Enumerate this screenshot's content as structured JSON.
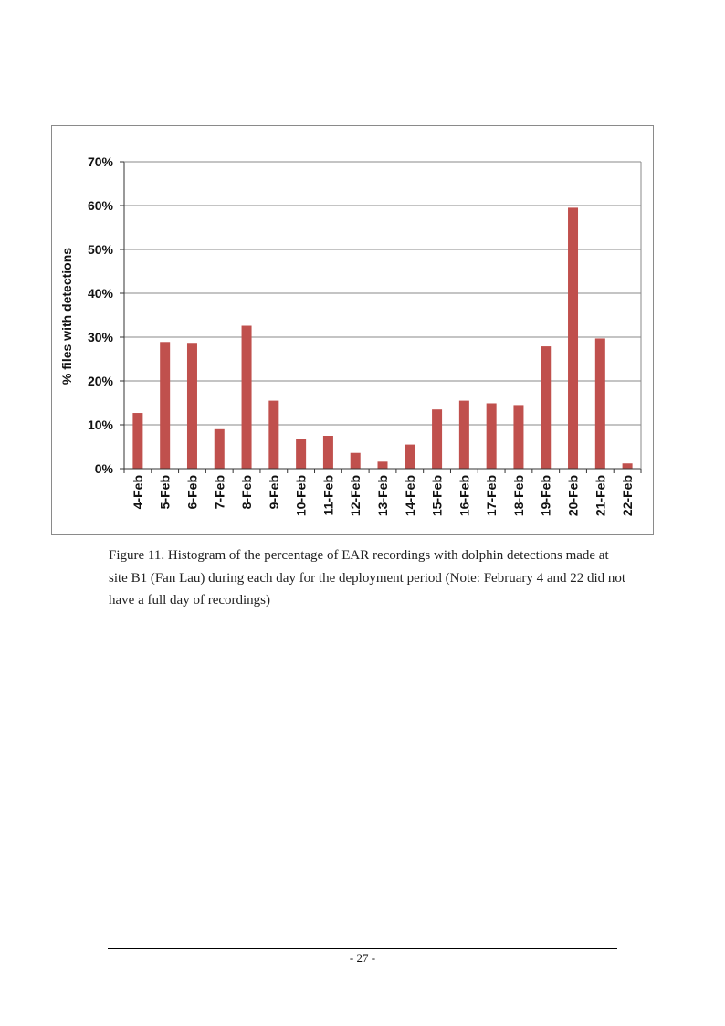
{
  "chart_data": {
    "type": "bar",
    "title": "",
    "xlabel": "",
    "ylabel": "% files with detections",
    "categories": [
      "4-Feb",
      "5-Feb",
      "6-Feb",
      "7-Feb",
      "8-Feb",
      "9-Feb",
      "10-Feb",
      "11-Feb",
      "12-Feb",
      "13-Feb",
      "14-Feb",
      "15-Feb",
      "16-Feb",
      "17-Feb",
      "18-Feb",
      "19-Feb",
      "20-Feb",
      "21-Feb",
      "22-Feb"
    ],
    "values": [
      12.7,
      28.9,
      28.7,
      9.0,
      32.6,
      15.5,
      6.7,
      7.5,
      3.6,
      1.6,
      5.5,
      13.5,
      15.5,
      14.9,
      14.5,
      27.9,
      59.5,
      29.7,
      1.2
    ],
    "ylim": [
      0,
      70
    ],
    "yticks": [
      0,
      10,
      20,
      30,
      40,
      50,
      60,
      70
    ],
    "ytick_labels": [
      "0%",
      "10%",
      "20%",
      "30%",
      "40%",
      "50%",
      "60%",
      "70%"
    ],
    "grid": true,
    "legend": "none",
    "bar_color": "#c0504d",
    "grid_color": "#8a8a8a",
    "axis_color": "#333333"
  },
  "caption": {
    "text": "Figure 11. Histogram of the percentage of EAR recordings with dolphin detections made at site B1 (Fan Lau) during each day for the deployment period (Note: February 4 and 22 did not have a full day of recordings)"
  },
  "footer": {
    "page_number": "- 27 -"
  }
}
